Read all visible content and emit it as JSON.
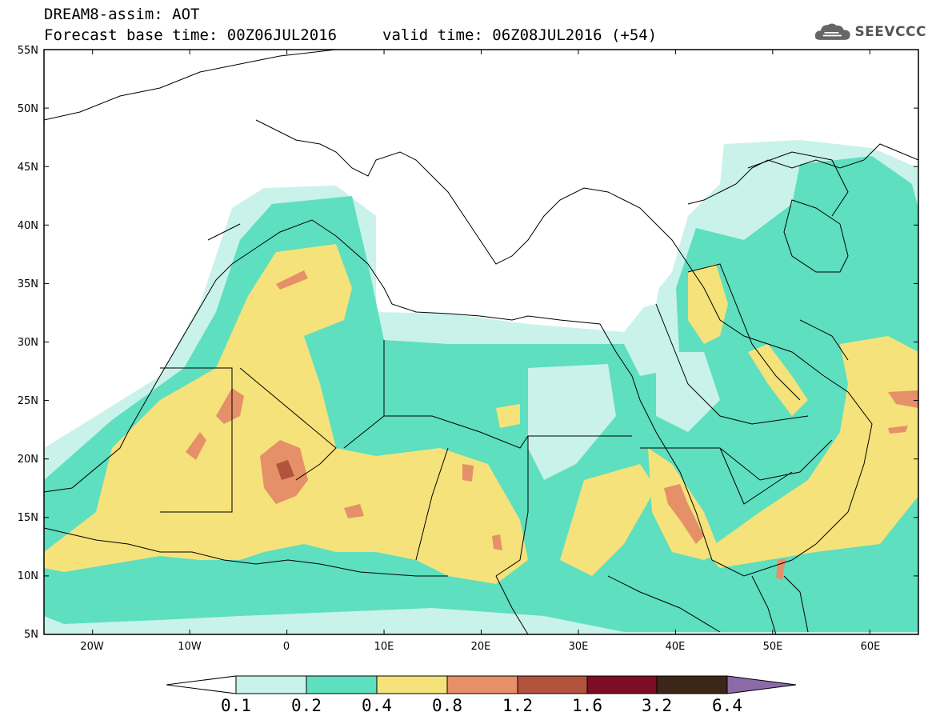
{
  "header": {
    "line1": "DREAM8-assim: AOT",
    "line2": "Forecast base time: 00Z06JUL2016",
    "line3": "valid time: 06Z08JUL2016 (+54)"
  },
  "logo": {
    "icon": "cloud-icon",
    "text": "SEEVCCC"
  },
  "map": {
    "lat_labels": [
      "55N",
      "50N",
      "45N",
      "40N",
      "35N",
      "30N",
      "25N",
      "20N",
      "15N",
      "10N",
      "5N"
    ],
    "lon_labels": [
      "20W",
      "10W",
      "0",
      "10E",
      "20E",
      "30E",
      "40E",
      "50E",
      "60E"
    ],
    "lat_range": [
      5,
      55
    ],
    "lon_range": [
      -25,
      65
    ]
  },
  "colorbar": {
    "labels": [
      "0.1",
      "0.2",
      "0.4",
      "0.8",
      "1.2",
      "1.6",
      "3.2",
      "6.4"
    ],
    "colors": [
      "#ffffff",
      "#c9f2ea",
      "#5edfbf",
      "#f5e27a",
      "#e59068",
      "#b1533d",
      "#7d0d24",
      "#3b2617",
      "#8b6aa8"
    ]
  }
}
